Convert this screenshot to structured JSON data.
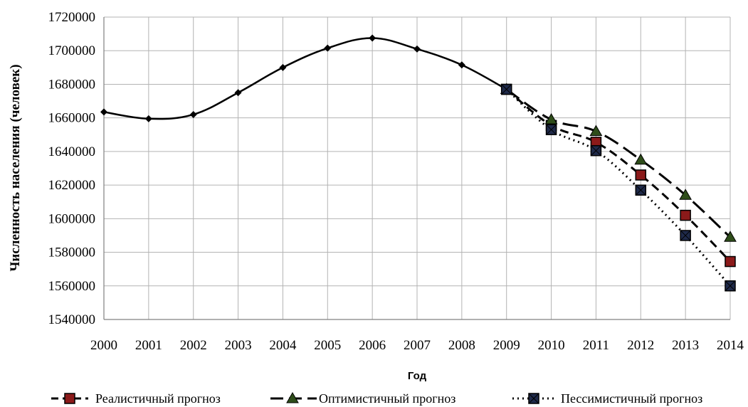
{
  "chart_data": {
    "type": "line",
    "xlabel": "Год",
    "ylabel": "Численность населения (человек)",
    "x": [
      "2000",
      "2001",
      "2002",
      "2003",
      "2004",
      "2005",
      "2006",
      "2007",
      "2008",
      "2009",
      "2010",
      "2011",
      "2012",
      "2013",
      "2014"
    ],
    "ylim": [
      1540000,
      1720000
    ],
    "yticks": [
      "1540000",
      "1560000",
      "1580000",
      "1600000",
      "1620000",
      "1640000",
      "1660000",
      "1680000",
      "1700000",
      "1720000"
    ],
    "grid": true,
    "legend_position": "bottom",
    "history": [
      1663500,
      1659500,
      1662000,
      1675000,
      1690000,
      1701500,
      1707500,
      1701000,
      1691500,
      1677000
    ],
    "series": [
      {
        "name": "Реалистичный прогноз",
        "x": [
          "2009",
          "2010",
          "2011",
          "2012",
          "2013",
          "2014"
        ],
        "values": [
          1677000,
          1655500,
          1645500,
          1626000,
          1602000,
          1574500
        ],
        "color": "#000000",
        "marker": "square",
        "marker_fill": "#8b1a1a"
      },
      {
        "name": "Оптимистичный прогноз",
        "x": [
          "2009",
          "2010",
          "2011",
          "2012",
          "2013",
          "2014"
        ],
        "values": [
          1677000,
          1659000,
          1652000,
          1635000,
          1614000,
          1589000
        ],
        "color": "#000000",
        "marker": "triangle",
        "marker_fill": "#2e4d1a"
      },
      {
        "name": "Пессимистичный прогноз",
        "x": [
          "2009",
          "2010",
          "2011",
          "2012",
          "2013",
          "2014"
        ],
        "values": [
          1677000,
          1653000,
          1640500,
          1617000,
          1590000,
          1560000
        ],
        "color": "#000000",
        "marker": "square-x",
        "marker_fill": "#1f2a4a"
      }
    ]
  }
}
